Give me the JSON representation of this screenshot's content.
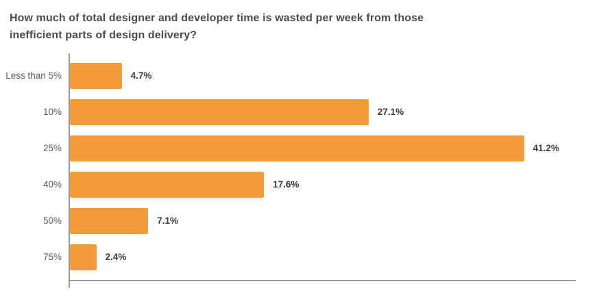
{
  "page": {
    "background": "#FFFFFF"
  },
  "chart_data": {
    "type": "bar",
    "orientation": "horizontal",
    "title": "How much of total designer and developer time is wasted per week from those inefficient parts of design delivery?",
    "title_lines": [
      "How much of total designer and developer time is wasted per week from those",
      "inefficient parts of design delivery?"
    ],
    "categories": [
      "Less than 5%",
      "10%",
      "25%",
      "40%",
      "50%",
      "75%"
    ],
    "values": [
      4.7,
      27.1,
      41.2,
      17.6,
      7.1,
      2.4
    ],
    "value_labels": [
      "4.7%",
      "27.1%",
      "41.2%",
      "17.6%",
      "7.1%",
      "2.4%"
    ],
    "xlabel": "",
    "ylabel": "",
    "xlim": [
      0,
      48
    ],
    "unit": "%",
    "grid": false,
    "legend": false,
    "colors": {
      "bar": "#F29C3E",
      "title_text": "#4B4A52",
      "category_text": "#5B5B63",
      "value_text": "#3A393F",
      "axis": "#9A9A9A"
    }
  }
}
